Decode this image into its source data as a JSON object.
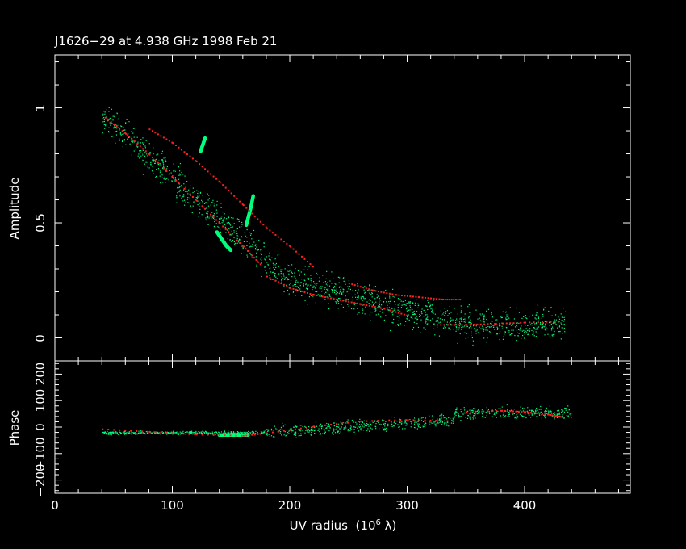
{
  "chart_data": [
    {
      "type": "scatter",
      "panel": "amplitude",
      "title": "J1626−29 at 4.938 GHz 1998 Feb 21",
      "xlabel": "UV radius",
      "xlabel_unit": "(10",
      "xlabel_exp": "6",
      "xlabel_unit_end": "λ)",
      "ylabel": "Amplitude",
      "xlim": [
        0,
        490
      ],
      "ylim": [
        -0.1,
        1.23
      ],
      "yticks": [
        0,
        0.5,
        1
      ],
      "ytick_labels": [
        "0",
        "0.5",
        "1"
      ],
      "grid": false,
      "colors": {
        "data": "#00ff7f",
        "model": "#ff2020",
        "axes": "#ffffff"
      },
      "series": [
        {
          "role": "model",
          "x": [
            40,
            60,
            80,
            100,
            120,
            140,
            160,
            175
          ],
          "y": [
            0.97,
            0.89,
            0.8,
            0.7,
            0.6,
            0.5,
            0.4,
            0.32
          ]
        },
        {
          "role": "model",
          "x": [
            80,
            100,
            120,
            140,
            160,
            180,
            200,
            220
          ],
          "y": [
            0.91,
            0.85,
            0.77,
            0.68,
            0.58,
            0.48,
            0.4,
            0.31
          ]
        },
        {
          "role": "model",
          "x": [
            180,
            200,
            220,
            240,
            260,
            280,
            300
          ],
          "y": [
            0.27,
            0.22,
            0.19,
            0.17,
            0.15,
            0.13,
            0.1
          ]
        },
        {
          "role": "model",
          "x": [
            250,
            270,
            290,
            310,
            330,
            345
          ],
          "y": [
            0.24,
            0.21,
            0.19,
            0.18,
            0.17,
            0.17
          ]
        },
        {
          "role": "model",
          "x": [
            325,
            350,
            375,
            400,
            430
          ],
          "y": [
            0.06,
            0.06,
            0.065,
            0.07,
            0.075
          ]
        },
        {
          "role": "data-cluster",
          "x": [
            124,
            126,
            128
          ],
          "y": [
            0.81,
            0.84,
            0.87
          ]
        },
        {
          "role": "data-cluster",
          "x": [
            163,
            165,
            167,
            169
          ],
          "y": [
            0.49,
            0.53,
            0.57,
            0.62
          ]
        },
        {
          "role": "data-cluster",
          "x": [
            138,
            142,
            146,
            150
          ],
          "y": [
            0.46,
            0.43,
            0.4,
            0.38
          ]
        }
      ]
    },
    {
      "type": "scatter",
      "panel": "phase",
      "ylabel": "Phase",
      "xlim": [
        0,
        490
      ],
      "ylim": [
        -250,
        250
      ],
      "xticks": [
        0,
        100,
        200,
        300,
        400
      ],
      "xtick_labels": [
        "0",
        "100",
        "200",
        "300",
        "400"
      ],
      "yticks": [
        -200,
        -100,
        0,
        100,
        200
      ],
      "ytick_labels": [
        "−200",
        "−100",
        "0",
        "100",
        "200"
      ],
      "grid": false,
      "series": [
        {
          "role": "model",
          "x": [
            40,
            80,
            120,
            160,
            180,
            220,
            260,
            300,
            340
          ],
          "y": [
            -5,
            -15,
            -25,
            -30,
            -20,
            5,
            25,
            30,
            25
          ]
        },
        {
          "role": "model",
          "x": [
            350,
            380,
            400,
            420,
            432
          ],
          "y": [
            60,
            65,
            60,
            50,
            40
          ]
        },
        {
          "role": "data-cluster",
          "x": [
            140,
            150,
            165
          ],
          "y": [
            -30,
            -30,
            -30
          ]
        }
      ]
    }
  ]
}
